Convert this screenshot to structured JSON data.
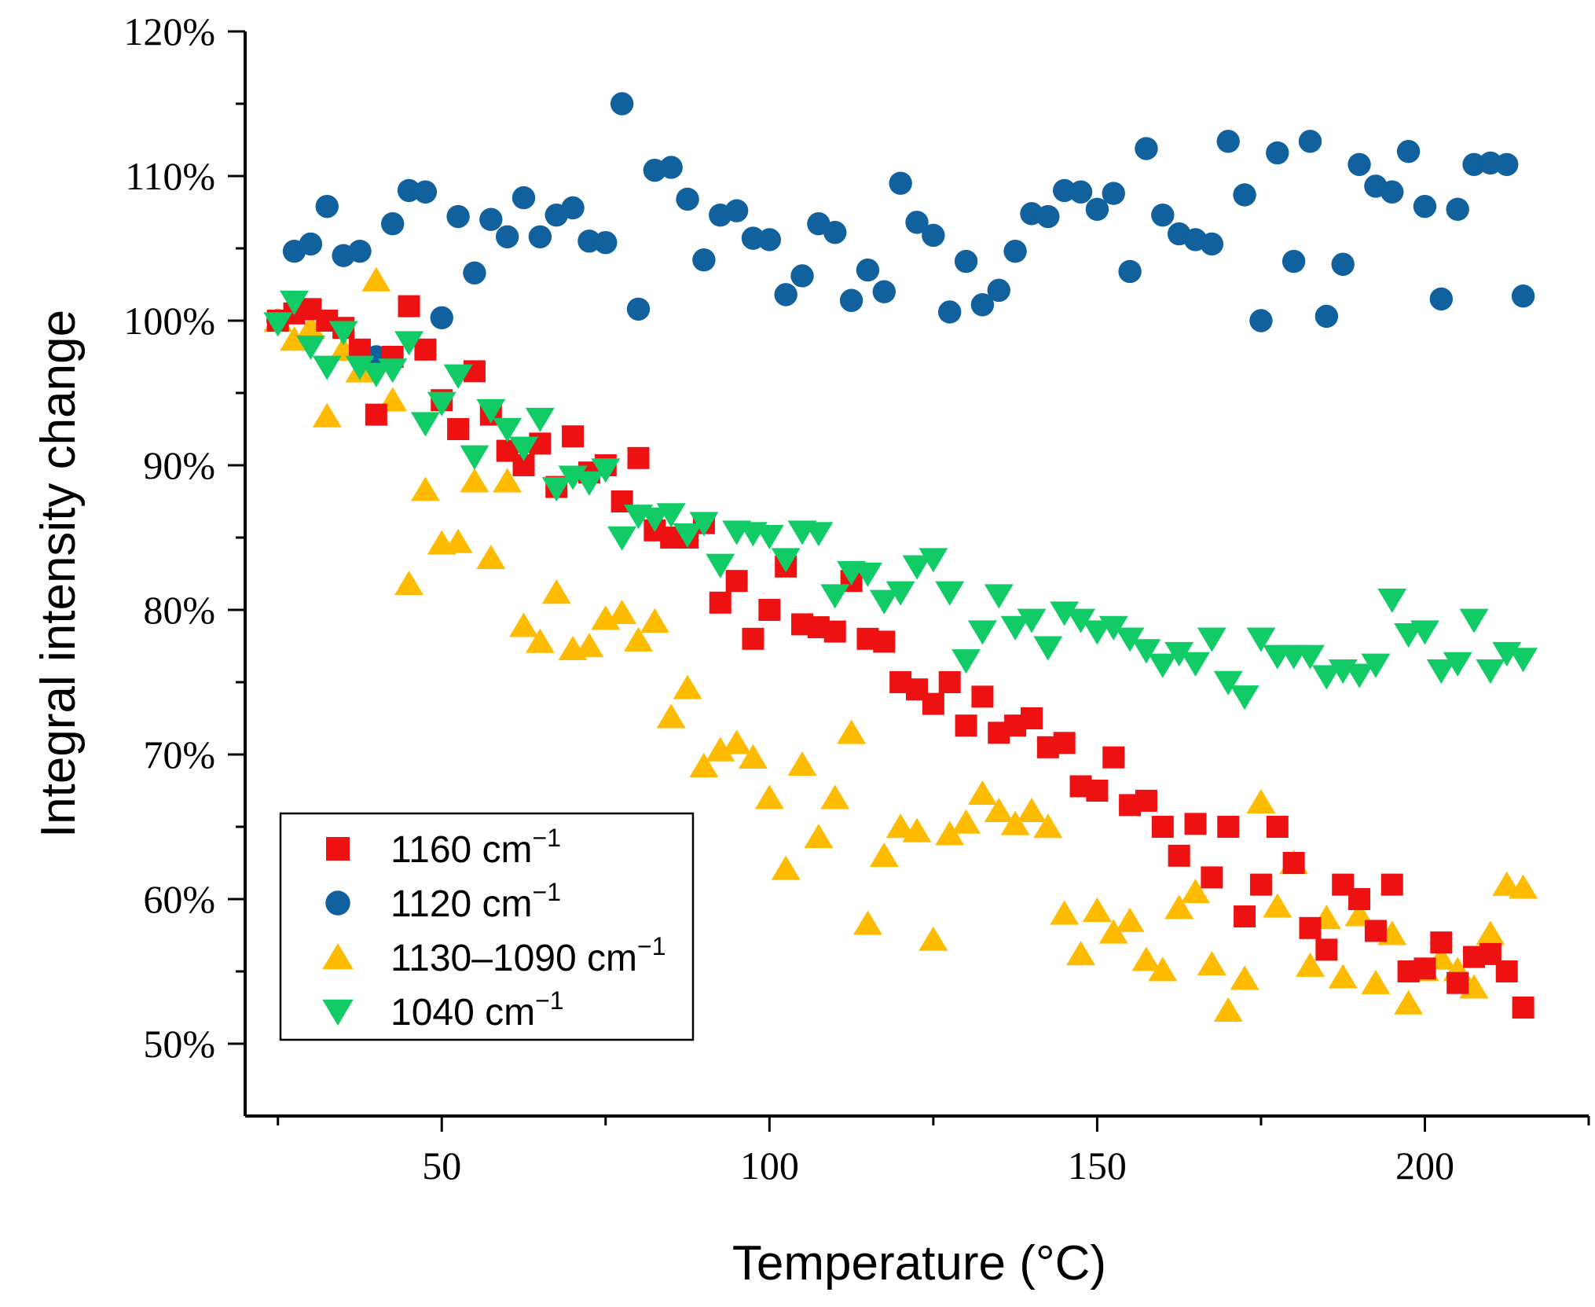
{
  "chart_data": {
    "type": "scatter",
    "title": "",
    "xlabel": "Temperature (°C)",
    "ylabel": "Integral intensity change",
    "xlim": [
      20,
      225
    ],
    "ylim": [
      45,
      120
    ],
    "x_ticks": [
      50,
      100,
      150,
      200
    ],
    "x_tick_labels": [
      "50",
      "100",
      "150",
      "200"
    ],
    "y_ticks": [
      50,
      60,
      70,
      80,
      90,
      100,
      110,
      120
    ],
    "y_tick_labels": [
      "50%",
      "60%",
      "70%",
      "80%",
      "90%",
      "100%",
      "110%",
      "120%"
    ],
    "grid": false,
    "legend_position": "bottom-left",
    "series": [
      {
        "name": "1160 cm⁻¹",
        "name_parts": [
          "1160 cm",
          "−1"
        ],
        "marker": "square",
        "color": "#ee1111",
        "x": [
          25,
          27.5,
          30,
          32.5,
          35,
          37.5,
          40,
          42.5,
          45,
          47.5,
          50,
          52.5,
          55,
          57.5,
          60,
          62.5,
          65,
          67.5,
          70,
          72.5,
          75,
          77.5,
          80,
          82.5,
          85,
          87.5,
          90,
          92.5,
          95,
          97.5,
          100,
          102.5,
          105,
          107.5,
          110,
          112.5,
          115,
          117.5,
          120,
          122.5,
          125,
          127.5,
          130,
          132.5,
          135,
          137.5,
          140,
          142.5,
          145,
          147.5,
          150,
          152.5,
          155,
          157.5,
          160,
          162.5,
          165,
          167.5,
          170,
          172.5,
          175,
          177.5,
          180,
          182.5,
          185,
          187.5,
          190,
          192.5,
          195,
          197.5,
          200,
          202.5,
          205,
          207.5,
          210,
          212.5,
          215
        ],
        "y": [
          100,
          100.5,
          100.8,
          100,
          99.5,
          98,
          93.5,
          97.5,
          101,
          98,
          94.5,
          92.5,
          96.5,
          93.5,
          91,
          90,
          91.5,
          88.5,
          92,
          89.5,
          90,
          87.5,
          90.5,
          85.5,
          85,
          85,
          86,
          80.5,
          82,
          78,
          80,
          83,
          79,
          78.8,
          78.5,
          82,
          78,
          77.8,
          75,
          74.5,
          73.5,
          75,
          72,
          74,
          71.5,
          72,
          72.5,
          70.5,
          70.8,
          67.8,
          67.5,
          69.8,
          66.5,
          66.8,
          65,
          63,
          65.2,
          61.5,
          65,
          58.8,
          61,
          65,
          62.5,
          58,
          56.5,
          61,
          60,
          57.8,
          61,
          55,
          55.2,
          57,
          54.2,
          56,
          56.2,
          55,
          52.5
        ]
      },
      {
        "name": "1120 cm⁻¹",
        "name_parts": [
          "1120 cm",
          "−1"
        ],
        "marker": "circle",
        "color": "#10619e",
        "x": [
          25,
          27.5,
          30,
          32.5,
          35,
          37.5,
          40,
          42.5,
          45,
          47.5,
          50,
          52.5,
          55,
          57.5,
          60,
          62.5,
          65,
          67.5,
          70,
          72.5,
          75,
          77.5,
          80,
          82.5,
          85,
          87.5,
          90,
          92.5,
          95,
          97.5,
          100,
          102.5,
          105,
          107.5,
          110,
          112.5,
          115,
          117.5,
          120,
          122.5,
          125,
          127.5,
          130,
          132.5,
          135,
          137.5,
          140,
          142.5,
          145,
          147.5,
          150,
          152.5,
          155,
          157.5,
          160,
          162.5,
          165,
          167.5,
          170,
          172.5,
          175,
          177.5,
          180,
          182.5,
          185,
          187.5,
          190,
          192.5,
          195,
          197.5,
          200,
          202.5,
          205,
          207.5,
          210,
          212.5,
          215
        ],
        "y": [
          100,
          104.8,
          105.3,
          107.9,
          104.5,
          104.8,
          97.5,
          106.7,
          109,
          108.9,
          100.2,
          107.2,
          103.3,
          107,
          105.8,
          108.5,
          105.8,
          107.3,
          107.8,
          105.5,
          105.4,
          115,
          100.8,
          110.4,
          110.6,
          108.4,
          104.2,
          107.3,
          107.6,
          105.7,
          105.6,
          101.8,
          103.1,
          106.7,
          106.1,
          101.4,
          103.5,
          102,
          109.5,
          106.8,
          105.9,
          100.6,
          104.1,
          101.1,
          102.1,
          104.8,
          107.4,
          107.2,
          109,
          108.9,
          107.7,
          108.8,
          103.4,
          111.9,
          107.3,
          106,
          105.6,
          105.3,
          112.4,
          108.7,
          100,
          111.6,
          104.1,
          112.4,
          100.3,
          103.9,
          110.8,
          109.3,
          108.9,
          111.7,
          107.9,
          101.5,
          107.7,
          110.8,
          110.9,
          110.8,
          101.7
        ]
      },
      {
        "name": "1130–1090 cm⁻¹",
        "name_parts": [
          "1130–1090 cm",
          "−1"
        ],
        "marker": "triangle-up",
        "color": "#ffbb00",
        "x": [
          25,
          27.5,
          30,
          32.5,
          35,
          37.5,
          40,
          42.5,
          45,
          47.5,
          50,
          52.5,
          55,
          57.5,
          60,
          62.5,
          65,
          67.5,
          70,
          72.5,
          75,
          77.5,
          80,
          82.5,
          85,
          87.5,
          90,
          92.5,
          95,
          97.5,
          100,
          102.5,
          105,
          107.5,
          110,
          112.5,
          115,
          117.5,
          120,
          122.5,
          125,
          127.5,
          130,
          132.5,
          135,
          137.5,
          140,
          142.5,
          145,
          147.5,
          150,
          152.5,
          155,
          157.5,
          160,
          162.5,
          165,
          167.5,
          170,
          172.5,
          175,
          177.5,
          180,
          182.5,
          185,
          187.5,
          190,
          192.5,
          195,
          197.5,
          200,
          202.5,
          205,
          207.5,
          210,
          212.5,
          215
        ],
        "y": [
          100,
          98.7,
          99.5,
          93.4,
          98,
          96.5,
          102.8,
          94.5,
          81.8,
          88.3,
          84.6,
          84.7,
          88.9,
          83.6,
          88.9,
          78.9,
          77.8,
          81.2,
          77.3,
          77.5,
          79.4,
          79.8,
          77.9,
          79.2,
          72.6,
          74.6,
          69.2,
          70.3,
          70.8,
          69.8,
          67,
          62.1,
          69.3,
          64.3,
          67,
          71.5,
          58.3,
          63,
          65,
          64.7,
          57.2,
          64.5,
          65.3,
          67.3,
          66.1,
          65.2,
          66.1,
          65,
          59,
          56.2,
          59.2,
          57.7,
          58.5,
          55.8,
          55.1,
          59.4,
          60.5,
          55.5,
          52.3,
          54.5,
          66.7,
          59.5,
          62.5,
          55.4,
          58.7,
          54.6,
          58.9,
          54.2,
          57.6,
          52.8,
          55.1,
          55.9,
          55.1,
          53.9,
          57.6,
          61,
          60.8
        ]
      },
      {
        "name": "1040 cm⁻¹",
        "name_parts": [
          "1040 cm",
          "−1"
        ],
        "marker": "triangle-down",
        "color": "#11cc66",
        "x": [
          25,
          27.5,
          30,
          32.5,
          35,
          37.5,
          40,
          42.5,
          45,
          47.5,
          50,
          52.5,
          55,
          57.5,
          60,
          62.5,
          65,
          67.5,
          70,
          72.5,
          75,
          77.5,
          80,
          82.5,
          85,
          87.5,
          90,
          92.5,
          95,
          97.5,
          100,
          102.5,
          105,
          107.5,
          110,
          112.5,
          115,
          117.5,
          120,
          122.5,
          125,
          127.5,
          130,
          132.5,
          135,
          137.5,
          140,
          142.5,
          145,
          147.5,
          150,
          152.5,
          155,
          157.5,
          160,
          162.5,
          165,
          167.5,
          170,
          172.5,
          175,
          177.5,
          180,
          182.5,
          185,
          187.5,
          190,
          192.5,
          195,
          197.5,
          200,
          202.5,
          205,
          207.5,
          210,
          212.5,
          215
        ],
        "y": [
          99.8,
          101.3,
          98.2,
          96.8,
          99.2,
          96.8,
          96.3,
          96.6,
          98.5,
          92.9,
          94.3,
          96.2,
          90.6,
          93.8,
          92.5,
          91.2,
          93.2,
          88.4,
          89.2,
          88.8,
          89.7,
          85,
          86.5,
          86.3,
          86.6,
          85.2,
          86,
          83.1,
          85.4,
          85.3,
          85.1,
          83.5,
          85.4,
          85.3,
          81,
          82.6,
          82.5,
          80.6,
          81.2,
          83,
          83.5,
          81.2,
          76.5,
          78.5,
          81,
          78.8,
          79.3,
          77.4,
          79.8,
          79.3,
          78.5,
          78.8,
          78,
          77.2,
          76.2,
          77,
          76.3,
          78,
          75,
          74,
          78,
          76.8,
          76.8,
          76.8,
          75.4,
          75.8,
          75.5,
          76.2,
          80.7,
          78.3,
          78.5,
          75.8,
          76.3,
          79.3,
          75.8,
          77,
          76.6
        ]
      }
    ]
  }
}
